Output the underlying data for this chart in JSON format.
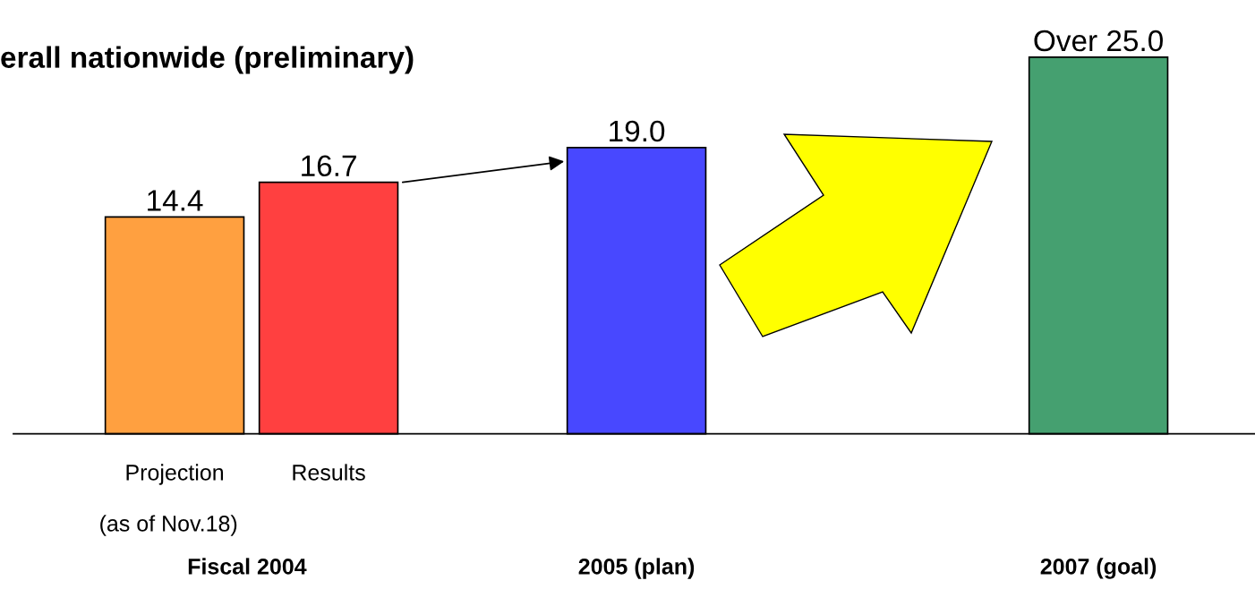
{
  "chart_data": {
    "type": "bar",
    "title": "erall nationwide (preliminary)",
    "categories": [
      "Projection",
      "Results",
      null,
      "2005 (plan)",
      null,
      null,
      "2007 (goal)"
    ],
    "values": [
      14.4,
      16.7,
      null,
      19.0,
      null,
      null,
      25.0
    ],
    "colors": [
      "#ffa040",
      "#ff4040",
      null,
      "#4848ff",
      null,
      null,
      "#45a070"
    ],
    "value_labels": [
      "14.4",
      "16.7",
      null,
      "19.0",
      null,
      null,
      "Over 25.0"
    ],
    "ylim": [
      -10.3,
      28.8
    ],
    "annotations": [
      "(as of Nov.18)",
      "Fiscal 2004"
    ]
  }
}
